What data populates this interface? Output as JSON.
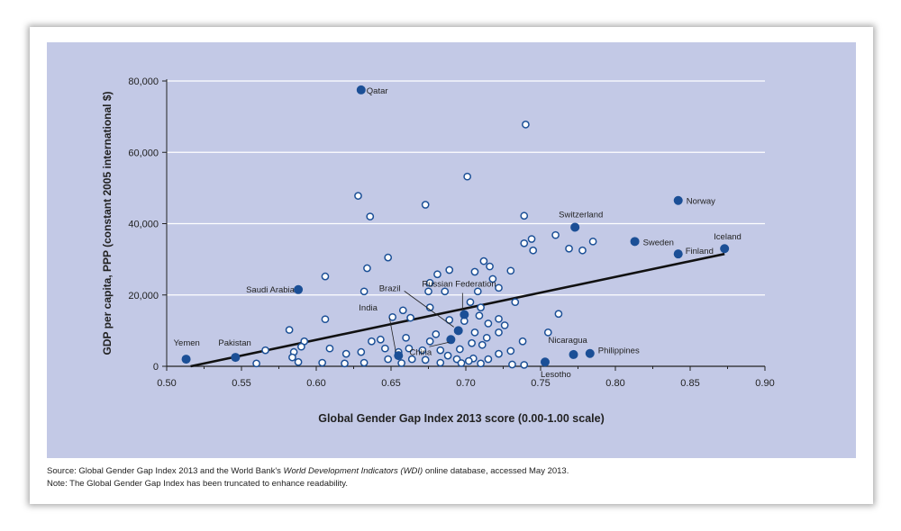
{
  "chart_data": {
    "type": "scatter",
    "xlabel": "Global Gender Gap Index 2013 score (0.00-1.00 scale)",
    "ylabel": "GDP per capita, PPP (constant 2005 international $)",
    "xlim": [
      0.5,
      0.9
    ],
    "ylim": [
      0,
      80000
    ],
    "x_ticks": [
      "0.50",
      "0.55",
      "0.60",
      "0.65",
      "0.70",
      "0.75",
      "0.80",
      "0.85",
      "0.90"
    ],
    "y_ticks": [
      "0",
      "20,000",
      "40,000",
      "60,000",
      "80,000"
    ],
    "grid": "horizontal",
    "colors": {
      "panel": "#c3c9e6",
      "marker": "#1b4f96",
      "trend": "#111111"
    },
    "labeled_points": [
      {
        "label": "Qatar",
        "x": 0.63,
        "y": 77500
      },
      {
        "label": "Norway",
        "x": 0.842,
        "y": 46500
      },
      {
        "label": "Switzerland",
        "x": 0.773,
        "y": 39000
      },
      {
        "label": "Sweden",
        "x": 0.813,
        "y": 35000
      },
      {
        "label": "Iceland",
        "x": 0.873,
        "y": 33000
      },
      {
        "label": "Finland",
        "x": 0.842,
        "y": 31500
      },
      {
        "label": "Russian Federation",
        "x": 0.699,
        "y": 14500
      },
      {
        "label": "Saudi Arabia",
        "x": 0.588,
        "y": 21500
      },
      {
        "label": "Brazil",
        "x": 0.695,
        "y": 10000
      },
      {
        "label": "India",
        "x": 0.655,
        "y": 3000
      },
      {
        "label": "China",
        "x": 0.69,
        "y": 7500
      },
      {
        "label": "Yemen",
        "x": 0.513,
        "y": 2000
      },
      {
        "label": "Pakistan",
        "x": 0.546,
        "y": 2500
      },
      {
        "label": "Nicaragua",
        "x": 0.772,
        "y": 3300
      },
      {
        "label": "Philippines",
        "x": 0.783,
        "y": 3600
      },
      {
        "label": "Lesotho",
        "x": 0.753,
        "y": 1200
      }
    ],
    "other_points": [
      {
        "x": 0.74,
        "y": 67800
      },
      {
        "x": 0.701,
        "y": 53200
      },
      {
        "x": 0.628,
        "y": 47800
      },
      {
        "x": 0.673,
        "y": 45300
      },
      {
        "x": 0.636,
        "y": 42000
      },
      {
        "x": 0.739,
        "y": 42200
      },
      {
        "x": 0.744,
        "y": 35700
      },
      {
        "x": 0.739,
        "y": 34500
      },
      {
        "x": 0.76,
        "y": 36800
      },
      {
        "x": 0.769,
        "y": 33000
      },
      {
        "x": 0.785,
        "y": 35000
      },
      {
        "x": 0.778,
        "y": 32500
      },
      {
        "x": 0.745,
        "y": 32500
      },
      {
        "x": 0.648,
        "y": 30500
      },
      {
        "x": 0.712,
        "y": 29500
      },
      {
        "x": 0.716,
        "y": 28000
      },
      {
        "x": 0.634,
        "y": 27500
      },
      {
        "x": 0.689,
        "y": 27000
      },
      {
        "x": 0.706,
        "y": 26500
      },
      {
        "x": 0.73,
        "y": 26800
      },
      {
        "x": 0.681,
        "y": 25800
      },
      {
        "x": 0.718,
        "y": 24500
      },
      {
        "x": 0.606,
        "y": 25200
      },
      {
        "x": 0.676,
        "y": 23400
      },
      {
        "x": 0.722,
        "y": 22000
      },
      {
        "x": 0.708,
        "y": 21000
      },
      {
        "x": 0.632,
        "y": 21000
      },
      {
        "x": 0.686,
        "y": 21000
      },
      {
        "x": 0.675,
        "y": 21000
      },
      {
        "x": 0.733,
        "y": 18000
      },
      {
        "x": 0.703,
        "y": 18000
      },
      {
        "x": 0.71,
        "y": 16500
      },
      {
        "x": 0.676,
        "y": 16500
      },
      {
        "x": 0.709,
        "y": 14200
      },
      {
        "x": 0.658,
        "y": 15700
      },
      {
        "x": 0.762,
        "y": 14700
      },
      {
        "x": 0.722,
        "y": 13300
      },
      {
        "x": 0.699,
        "y": 12700
      },
      {
        "x": 0.715,
        "y": 12000
      },
      {
        "x": 0.726,
        "y": 11500
      },
      {
        "x": 0.606,
        "y": 13200
      },
      {
        "x": 0.651,
        "y": 13800
      },
      {
        "x": 0.663,
        "y": 13600
      },
      {
        "x": 0.689,
        "y": 13000
      },
      {
        "x": 0.582,
        "y": 10200
      },
      {
        "x": 0.722,
        "y": 9500
      },
      {
        "x": 0.755,
        "y": 9500
      },
      {
        "x": 0.706,
        "y": 9500
      },
      {
        "x": 0.68,
        "y": 9000
      },
      {
        "x": 0.714,
        "y": 8000
      },
      {
        "x": 0.66,
        "y": 8000
      },
      {
        "x": 0.592,
        "y": 7000
      },
      {
        "x": 0.637,
        "y": 7000
      },
      {
        "x": 0.643,
        "y": 7500
      },
      {
        "x": 0.676,
        "y": 7000
      },
      {
        "x": 0.704,
        "y": 6500
      },
      {
        "x": 0.738,
        "y": 7000
      },
      {
        "x": 0.711,
        "y": 6000
      },
      {
        "x": 0.59,
        "y": 5500
      },
      {
        "x": 0.609,
        "y": 5000
      },
      {
        "x": 0.566,
        "y": 4500
      },
      {
        "x": 0.585,
        "y": 4000
      },
      {
        "x": 0.646,
        "y": 5000
      },
      {
        "x": 0.662,
        "y": 5000
      },
      {
        "x": 0.683,
        "y": 4500
      },
      {
        "x": 0.696,
        "y": 4800
      },
      {
        "x": 0.671,
        "y": 4500
      },
      {
        "x": 0.73,
        "y": 4300
      },
      {
        "x": 0.63,
        "y": 4000
      },
      {
        "x": 0.62,
        "y": 3500
      },
      {
        "x": 0.655,
        "y": 4000
      },
      {
        "x": 0.688,
        "y": 3000
      },
      {
        "x": 0.722,
        "y": 3500
      },
      {
        "x": 0.584,
        "y": 2500
      },
      {
        "x": 0.648,
        "y": 2000
      },
      {
        "x": 0.664,
        "y": 2000
      },
      {
        "x": 0.694,
        "y": 2000
      },
      {
        "x": 0.705,
        "y": 2200
      },
      {
        "x": 0.715,
        "y": 2000
      },
      {
        "x": 0.702,
        "y": 1500
      },
      {
        "x": 0.588,
        "y": 1200
      },
      {
        "x": 0.604,
        "y": 1000
      },
      {
        "x": 0.632,
        "y": 1000
      },
      {
        "x": 0.619,
        "y": 800
      },
      {
        "x": 0.657,
        "y": 900
      },
      {
        "x": 0.683,
        "y": 1000
      },
      {
        "x": 0.71,
        "y": 800
      },
      {
        "x": 0.731,
        "y": 500
      },
      {
        "x": 0.739,
        "y": 400
      },
      {
        "x": 0.56,
        "y": 800
      },
      {
        "x": 0.673,
        "y": 1800
      },
      {
        "x": 0.697,
        "y": 900
      }
    ],
    "trendline": {
      "x": [
        0.516,
        0.873
      ],
      "y": [
        0,
        31500
      ]
    }
  },
  "footnotes": {
    "source_prefix": "Source: Global Gender Gap Index 2013 and the World Bank's ",
    "source_italic": "World Development Indicators (WDI)",
    "source_suffix": " online database, accessed May 2013.",
    "note": "Note: The Global Gender Gap Index has been truncated to enhance readability."
  }
}
